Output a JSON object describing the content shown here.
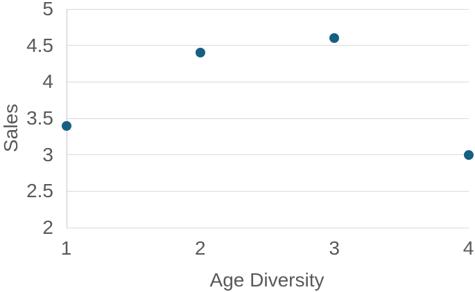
{
  "chart_data": {
    "type": "scatter",
    "title": "",
    "xlabel": "Age Diversity",
    "ylabel": "Sales",
    "x": [
      1,
      2,
      3,
      4
    ],
    "y": [
      3.4,
      4.4,
      4.6,
      3.0
    ],
    "xlim": [
      1,
      4
    ],
    "ylim": [
      2,
      5
    ],
    "x_tick_values": [
      1,
      2,
      3,
      4
    ],
    "x_tick_labels": [
      "1",
      "2",
      "3",
      "4"
    ],
    "y_tick_values": [
      2,
      2.5,
      3,
      3.5,
      4,
      4.5,
      5
    ],
    "y_tick_labels": [
      "2",
      "2.5",
      "3",
      "3.5",
      "4",
      "4.5",
      "5"
    ],
    "grid": "horizontal",
    "legend_position": "none",
    "marker_color": "#156082",
    "gridline_color": "#d9d9d9",
    "axis_line_color": "#c6c6c6",
    "text_color": "#595959"
  }
}
